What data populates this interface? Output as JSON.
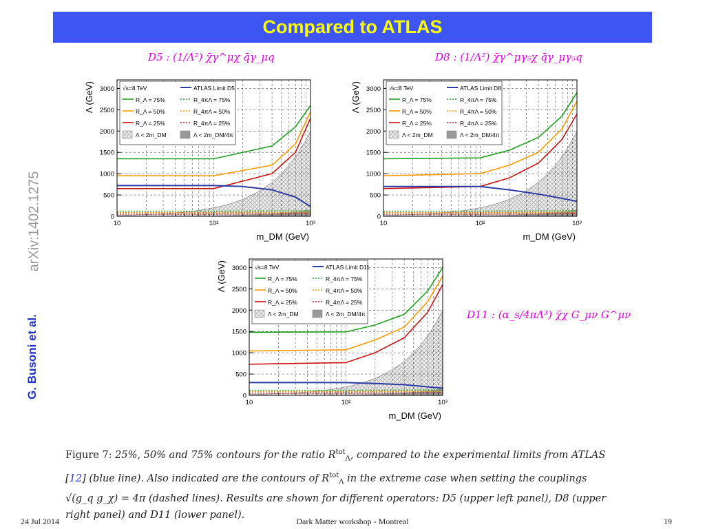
{
  "slide": {
    "title": "Compared to ATLAS",
    "arxiv": "arXiv:1402.1275",
    "authors": "G. Busoni et al."
  },
  "formulas": {
    "d5": "D5 : (1/Λ²) χ̄γ^μχ q̄γ_μq",
    "d8": "D8 : (1/Λ²) χ̄γ^μγ₅χ q̄γ_μγ₅q",
    "d11": "D11 : (α_s/4πΛ³) χ̄χ G_μν G^μν"
  },
  "caption": {
    "label": "Figure 7:",
    "text_a": "25%, 50% and 75% contours for the ratio R",
    "sym1_sup": "tot",
    "sym1_sub": "Λ",
    "text_b": ", compared to the experimental limits from ATLAS [",
    "ref": "12",
    "text_c": "] (blue line). Also indicated are the contours of R",
    "text_d": " in the extreme case when setting the couplings √(g_q g_χ) = 4π (dashed lines). Results are shown for different operators: D5 (upper left panel), D8 (upper right panel) and D11 (lower panel)."
  },
  "footer": {
    "date": "24 Jul 2014",
    "center": "Dark Matter workshop - Montreal",
    "page": "19"
  },
  "colors": {
    "title_bar": "#3d55f2",
    "title_text": "#ffff00",
    "r75": "#1ea01e",
    "r50": "#ff9900",
    "r25": "#cc1111",
    "atlas": "#2a3aa6",
    "formula": "#e600e6",
    "hatch": "#b8b8b8",
    "solid_region": "#999999"
  },
  "chart_data": [
    {
      "type": "line",
      "panel": "D5",
      "xlabel": "m_DM (GeV)",
      "ylabel": "Λ (GeV)",
      "xscale": "log",
      "xlim": [
        10,
        1000
      ],
      "ylim": [
        0,
        3200
      ],
      "xticks": [
        "10",
        "10²",
        "10³"
      ],
      "yticks": [
        0,
        500,
        1000,
        1500,
        2000,
        2500,
        3000
      ],
      "grid": "dashed",
      "legend": [
        "√s=8 TeV",
        "ATLAS Limit D5",
        "R_Λ = 75%",
        "R_4πΛ = 75%",
        "R_Λ = 50%",
        "R_4πΛ = 50%",
        "R_Λ = 25%",
        "R_4πΛ = 25%",
        "Λ < 2m_DM",
        "Λ < 2m_DM/4π"
      ],
      "series": [
        {
          "name": "R_Λ = 75%",
          "x": [
            10,
            100,
            400,
            700,
            1000
          ],
          "y": [
            1350,
            1350,
            1650,
            2100,
            2600
          ]
        },
        {
          "name": "R_Λ = 50%",
          "x": [
            10,
            100,
            400,
            700,
            1000
          ],
          "y": [
            950,
            950,
            1200,
            1700,
            2450
          ]
        },
        {
          "name": "R_Λ = 25%",
          "x": [
            10,
            100,
            400,
            700,
            1000
          ],
          "y": [
            650,
            650,
            1000,
            1500,
            2300
          ]
        },
        {
          "name": "ATLAS Limit D5",
          "x": [
            10,
            100,
            200,
            400,
            700,
            1000
          ],
          "y": [
            720,
            720,
            700,
            620,
            450,
            230
          ]
        },
        {
          "name": "R_4πΛ = 75%",
          "x": [
            10,
            100,
            1000
          ],
          "y": [
            120,
            120,
            130
          ]
        },
        {
          "name": "R_4πΛ = 50%",
          "x": [
            10,
            100,
            1000
          ],
          "y": [
            85,
            85,
            95
          ]
        },
        {
          "name": "R_4πΛ = 25%",
          "x": [
            10,
            100,
            1000
          ],
          "y": [
            50,
            50,
            60
          ]
        }
      ]
    },
    {
      "type": "line",
      "panel": "D8",
      "xlabel": "m_DM (GeV)",
      "ylabel": "Λ (GeV)",
      "xscale": "log",
      "xlim": [
        10,
        1000
      ],
      "ylim": [
        0,
        3200
      ],
      "xticks": [
        "10",
        "10²",
        "10³"
      ],
      "yticks": [
        0,
        500,
        1000,
        1500,
        2000,
        2500,
        3000
      ],
      "grid": "dashed",
      "legend": [
        "√s=8 TeV",
        "ATLAS Limit D8",
        "R_Λ = 75%",
        "R_4πΛ = 75%",
        "R_Λ = 50%",
        "R_4πΛ = 50%",
        "R_Λ = 25%",
        "R_4πΛ = 25%",
        "Λ < 2m_DM",
        "Λ < 2m_DM/4π"
      ],
      "series": [
        {
          "name": "R_Λ = 75%",
          "x": [
            10,
            100,
            200,
            400,
            700,
            1000
          ],
          "y": [
            1350,
            1370,
            1550,
            1850,
            2350,
            2900
          ]
        },
        {
          "name": "R_Λ = 50%",
          "x": [
            10,
            100,
            200,
            400,
            700,
            1000
          ],
          "y": [
            950,
            1000,
            1200,
            1500,
            2050,
            2700
          ]
        },
        {
          "name": "R_Λ = 25%",
          "x": [
            10,
            100,
            200,
            400,
            700,
            1000
          ],
          "y": [
            650,
            700,
            900,
            1250,
            1800,
            2400
          ]
        },
        {
          "name": "ATLAS Limit D8",
          "x": [
            10,
            100,
            200,
            400,
            700,
            1000
          ],
          "y": [
            700,
            700,
            620,
            520,
            420,
            350
          ]
        },
        {
          "name": "R_4πΛ = 75%",
          "x": [
            10,
            100,
            1000
          ],
          "y": [
            120,
            120,
            130
          ]
        },
        {
          "name": "R_4πΛ = 50%",
          "x": [
            10,
            100,
            1000
          ],
          "y": [
            85,
            85,
            95
          ]
        },
        {
          "name": "R_4πΛ = 25%",
          "x": [
            10,
            100,
            1000
          ],
          "y": [
            50,
            50,
            60
          ]
        }
      ]
    },
    {
      "type": "line",
      "panel": "D11",
      "xlabel": "m_DM (GeV)",
      "ylabel": "Λ (GeV)",
      "xscale": "log",
      "xlim": [
        10,
        1000
      ],
      "ylim": [
        0,
        3200
      ],
      "xticks": [
        "10",
        "10²",
        "10³"
      ],
      "yticks": [
        0,
        500,
        1000,
        1500,
        2000,
        2500,
        3000
      ],
      "grid": "dashed",
      "legend": [
        "√s=8 TeV",
        "ATLAS Limit D11",
        "R_Λ = 75%",
        "R_4πΛ = 75%",
        "R_Λ = 50%",
        "R_4πΛ = 50%",
        "R_Λ = 25%",
        "R_4πΛ = 25%",
        "Λ < 2m_DM",
        "Λ < 2m_DM/4π"
      ],
      "series": [
        {
          "name": "R_Λ = 75%",
          "x": [
            10,
            100,
            200,
            400,
            700,
            1000
          ],
          "y": [
            1480,
            1490,
            1650,
            1900,
            2450,
            3000
          ]
        },
        {
          "name": "R_Λ = 50%",
          "x": [
            10,
            100,
            200,
            400,
            700,
            1000
          ],
          "y": [
            1040,
            1070,
            1300,
            1600,
            2200,
            2800
          ]
        },
        {
          "name": "R_Λ = 25%",
          "x": [
            10,
            100,
            200,
            400,
            700,
            1000
          ],
          "y": [
            730,
            770,
            1000,
            1350,
            1950,
            2600
          ]
        },
        {
          "name": "ATLAS Limit D11",
          "x": [
            10,
            100,
            200,
            400,
            700,
            1000
          ],
          "y": [
            300,
            300,
            280,
            250,
            200,
            170
          ]
        },
        {
          "name": "R_4πΛ = 75%",
          "x": [
            10,
            100,
            1000
          ],
          "y": [
            120,
            120,
            130
          ]
        },
        {
          "name": "R_4πΛ = 50%",
          "x": [
            10,
            100,
            1000
          ],
          "y": [
            85,
            85,
            95
          ]
        },
        {
          "name": "R_4πΛ = 25%",
          "x": [
            10,
            100,
            1000
          ],
          "y": [
            50,
            50,
            60
          ]
        }
      ]
    }
  ]
}
